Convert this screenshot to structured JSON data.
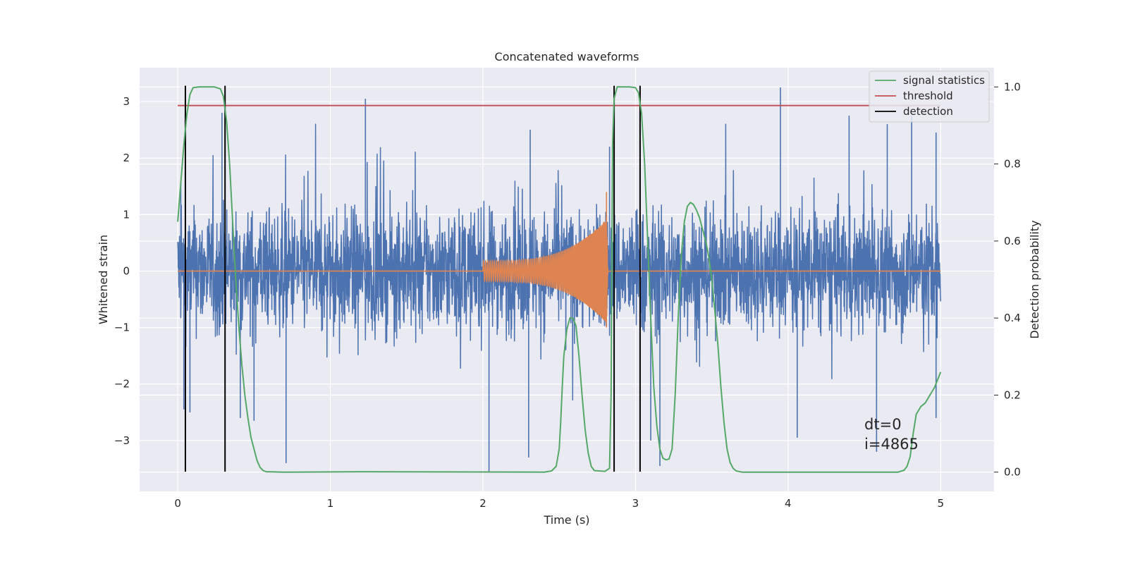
{
  "chart_data": {
    "type": "line",
    "title": "Concatenated waveforms",
    "xlabel": "Time (s)",
    "ylabel": "Whitened strain",
    "y2label": "Detection probability",
    "xlim": [
      -0.25,
      5.35
    ],
    "ylim": [
      -3.9,
      3.6
    ],
    "y2lim": [
      -0.05,
      1.05
    ],
    "xticks": [
      0,
      1,
      2,
      3,
      4,
      5
    ],
    "yticks": [
      -3,
      -2,
      -1,
      0,
      1,
      2,
      3
    ],
    "y2ticks": [
      0.0,
      0.2,
      0.4,
      0.6,
      0.8,
      1.0
    ],
    "x_tick_labels": [
      "0",
      "1",
      "2",
      "3",
      "4",
      "5"
    ],
    "y_tick_labels": [
      "−3",
      "−2",
      "−1",
      "0",
      "1",
      "2",
      "3"
    ],
    "y2_tick_labels": [
      "0.0",
      "0.2",
      "0.4",
      "0.6",
      "0.8",
      "1.0"
    ],
    "grid": true,
    "legend_position": "top-right",
    "series": [
      {
        "kind": "noise",
        "color": "#4c72b0",
        "axis": "left",
        "x_range": [
          0,
          5
        ],
        "typical_amplitude": 1.6,
        "spikes": [
          {
            "x": 0.02,
            "y": 1.55
          },
          {
            "x": 0.04,
            "y": -2.45
          },
          {
            "x": 0.08,
            "y": -2.5
          },
          {
            "x": 0.29,
            "y": 2.8
          },
          {
            "x": 0.41,
            "y": -2.6
          },
          {
            "x": 0.5,
            "y": -2.65
          },
          {
            "x": 0.71,
            "y": -3.4
          },
          {
            "x": 1.23,
            "y": 3.05
          },
          {
            "x": 2.04,
            "y": -3.55
          },
          {
            "x": 2.31,
            "y": 2.5
          },
          {
            "x": 2.3,
            "y": -3.3
          },
          {
            "x": 2.83,
            "y": 2.2
          },
          {
            "x": 3.1,
            "y": -3.0
          },
          {
            "x": 3.16,
            "y": -3.45
          },
          {
            "x": 3.95,
            "y": 3.25
          },
          {
            "x": 4.06,
            "y": -2.95
          },
          {
            "x": 4.4,
            "y": 2.75
          },
          {
            "x": 4.58,
            "y": -3.2
          },
          {
            "x": 4.65,
            "y": 2.6
          },
          {
            "x": 4.81,
            "y": 2.75
          },
          {
            "x": 4.97,
            "y": 2.45
          },
          {
            "x": 4.97,
            "y": -2.6
          }
        ]
      },
      {
        "kind": "chirp",
        "color": "#dd8452",
        "axis": "left",
        "x_range": [
          2.0,
          2.82
        ],
        "envelope_start": 0.18,
        "peak": 1.4,
        "trough": -1.0
      },
      {
        "name": "signal statistics",
        "color": "#55a868",
        "axis": "right",
        "points": [
          [
            0.0,
            0.65
          ],
          [
            0.02,
            0.75
          ],
          [
            0.04,
            0.85
          ],
          [
            0.06,
            0.93
          ],
          [
            0.08,
            0.98
          ],
          [
            0.1,
            0.998
          ],
          [
            0.14,
            1.0
          ],
          [
            0.24,
            1.0
          ],
          [
            0.28,
            0.995
          ],
          [
            0.3,
            0.975
          ],
          [
            0.32,
            0.91
          ],
          [
            0.34,
            0.8
          ],
          [
            0.36,
            0.65
          ],
          [
            0.38,
            0.5
          ],
          [
            0.4,
            0.38
          ],
          [
            0.42,
            0.28
          ],
          [
            0.44,
            0.2
          ],
          [
            0.46,
            0.14
          ],
          [
            0.48,
            0.09
          ],
          [
            0.5,
            0.06
          ],
          [
            0.52,
            0.03
          ],
          [
            0.54,
            0.012
          ],
          [
            0.56,
            0.004
          ],
          [
            0.58,
            0.001
          ],
          [
            0.7,
            0.0
          ],
          [
            1.2,
            0.001
          ],
          [
            2.4,
            0.0
          ],
          [
            2.45,
            0.003
          ],
          [
            2.48,
            0.015
          ],
          [
            2.5,
            0.06
          ],
          [
            2.51,
            0.13
          ],
          [
            2.52,
            0.22
          ],
          [
            2.53,
            0.3
          ],
          [
            2.55,
            0.37
          ],
          [
            2.57,
            0.4
          ],
          [
            2.59,
            0.4
          ],
          [
            2.61,
            0.38
          ],
          [
            2.63,
            0.3
          ],
          [
            2.65,
            0.2
          ],
          [
            2.67,
            0.11
          ],
          [
            2.69,
            0.05
          ],
          [
            2.71,
            0.015
          ],
          [
            2.73,
            0.004
          ],
          [
            2.8,
            0.002
          ],
          [
            2.83,
            0.01
          ],
          [
            2.84,
            0.2
          ],
          [
            2.85,
            0.85
          ],
          [
            2.86,
            0.97
          ],
          [
            2.88,
            1.0
          ],
          [
            2.96,
            1.0
          ],
          [
            3.0,
            0.998
          ],
          [
            3.02,
            0.985
          ],
          [
            3.04,
            0.93
          ],
          [
            3.06,
            0.8
          ],
          [
            3.08,
            0.6
          ],
          [
            3.1,
            0.4
          ],
          [
            3.12,
            0.22
          ],
          [
            3.14,
            0.12
          ],
          [
            3.16,
            0.06
          ],
          [
            3.18,
            0.036
          ],
          [
            3.2,
            0.032
          ],
          [
            3.22,
            0.034
          ],
          [
            3.24,
            0.06
          ],
          [
            3.26,
            0.2
          ],
          [
            3.28,
            0.4
          ],
          [
            3.3,
            0.56
          ],
          [
            3.32,
            0.65
          ],
          [
            3.34,
            0.69
          ],
          [
            3.36,
            0.7
          ],
          [
            3.38,
            0.695
          ],
          [
            3.4,
            0.68
          ],
          [
            3.42,
            0.66
          ],
          [
            3.44,
            0.63
          ],
          [
            3.46,
            0.6
          ],
          [
            3.48,
            0.56
          ],
          [
            3.5,
            0.5
          ],
          [
            3.52,
            0.42
          ],
          [
            3.54,
            0.33
          ],
          [
            3.56,
            0.22
          ],
          [
            3.58,
            0.13
          ],
          [
            3.6,
            0.06
          ],
          [
            3.62,
            0.025
          ],
          [
            3.64,
            0.01
          ],
          [
            3.66,
            0.003
          ],
          [
            3.7,
            0.0
          ],
          [
            4.72,
            0.0
          ],
          [
            4.76,
            0.005
          ],
          [
            4.78,
            0.015
          ],
          [
            4.8,
            0.04
          ],
          [
            4.82,
            0.1
          ],
          [
            4.84,
            0.15
          ],
          [
            4.87,
            0.17
          ],
          [
            4.9,
            0.18
          ],
          [
            4.93,
            0.2
          ],
          [
            4.96,
            0.22
          ],
          [
            5.0,
            0.26
          ]
        ]
      },
      {
        "name": "threshold",
        "color": "#c44e52",
        "axis": "left",
        "value": 2.93,
        "x_range": [
          0,
          5
        ]
      },
      {
        "name": "detection",
        "color": "#000000",
        "axis": "left",
        "x": [
          0.05,
          0.31,
          2.86,
          3.03
        ],
        "y_range": [
          -3.55,
          3.28
        ]
      }
    ],
    "annotations": [
      {
        "text": "dt=0",
        "x": 4.5,
        "y": -2.8
      },
      {
        "text": "i=4865",
        "x": 4.5,
        "y": -3.15
      }
    ]
  }
}
